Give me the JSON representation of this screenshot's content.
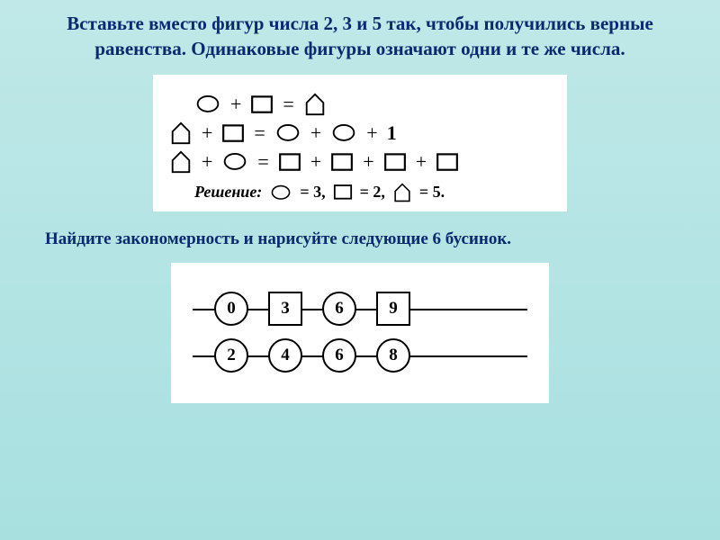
{
  "title": "Вставьте вместо фигур числа 2, 3 и 5 так, чтобы получились верные равенства. Одинаковые фигуры означают одни и те же числа.",
  "subtitle": "Найдите закономерность и нарисуйте следующие 6 бусинок.",
  "shapes": {
    "circle": {
      "stroke": "#000000",
      "strokeWidth": 2,
      "size": 26
    },
    "square": {
      "stroke": "#000000",
      "strokeWidth": 2,
      "size": 24
    },
    "house": {
      "stroke": "#000000",
      "strokeWidth": 2,
      "size": 28
    }
  },
  "equations": [
    {
      "indent": true,
      "tokens": [
        "circle",
        "+",
        "square",
        "=",
        "house"
      ]
    },
    {
      "indent": false,
      "tokens": [
        "house",
        "+",
        "square",
        "=",
        "circle",
        "+",
        "circle",
        "+",
        "1"
      ]
    },
    {
      "indent": false,
      "tokens": [
        "house",
        "+",
        "circle",
        "=",
        "square",
        "+",
        "square",
        "+",
        "square",
        "+",
        "square"
      ]
    }
  ],
  "solution": {
    "label": "Решение:",
    "items": [
      {
        "shape": "circle",
        "value": "3"
      },
      {
        "shape": "square",
        "value": "2"
      },
      {
        "shape": "house",
        "value": "5"
      }
    ],
    "period": "."
  },
  "bead_sequences": [
    {
      "beads": [
        {
          "shape": "circle",
          "value": "0"
        },
        {
          "shape": "square",
          "value": "3"
        },
        {
          "shape": "circle",
          "value": "6"
        },
        {
          "shape": "square",
          "value": "9"
        }
      ]
    },
    {
      "beads": [
        {
          "shape": "circle",
          "value": "2"
        },
        {
          "shape": "circle",
          "value": "4"
        },
        {
          "shape": "circle",
          "value": "6"
        },
        {
          "shape": "circle",
          "value": "8"
        }
      ]
    }
  ],
  "colors": {
    "title": "#0a2a6d",
    "panel_bg": "#ffffff",
    "page_bg_top": "#c0e8e8",
    "page_bg_bottom": "#a8e0e0",
    "stroke": "#000000"
  },
  "typography": {
    "title_fontsize": 21,
    "subtitle_fontsize": 19,
    "equation_fontsize": 22,
    "bead_fontsize": 19,
    "font_family": "Georgia, Times New Roman, serif"
  }
}
